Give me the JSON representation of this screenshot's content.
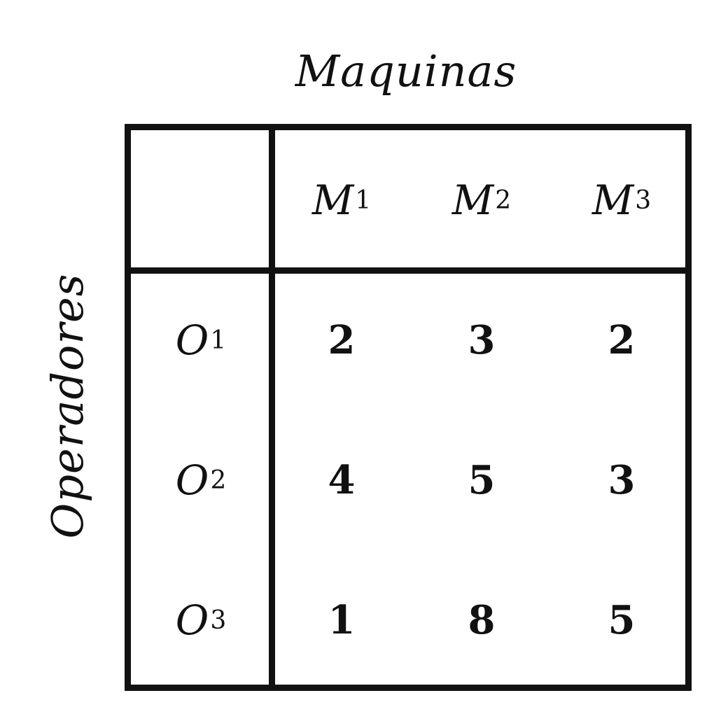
{
  "column_title": "Maquinas",
  "row_title": "Operadores",
  "columns": [
    {
      "letter": "M",
      "index": "1"
    },
    {
      "letter": "M",
      "index": "2"
    },
    {
      "letter": "M",
      "index": "3"
    }
  ],
  "rows": [
    {
      "letter": "O",
      "index": "1",
      "values": [
        "2",
        "3",
        "2"
      ]
    },
    {
      "letter": "O",
      "index": "2",
      "values": [
        "4",
        "5",
        "3"
      ]
    },
    {
      "letter": "O",
      "index": "3",
      "values": [
        "1",
        "8",
        "5"
      ]
    }
  ]
}
